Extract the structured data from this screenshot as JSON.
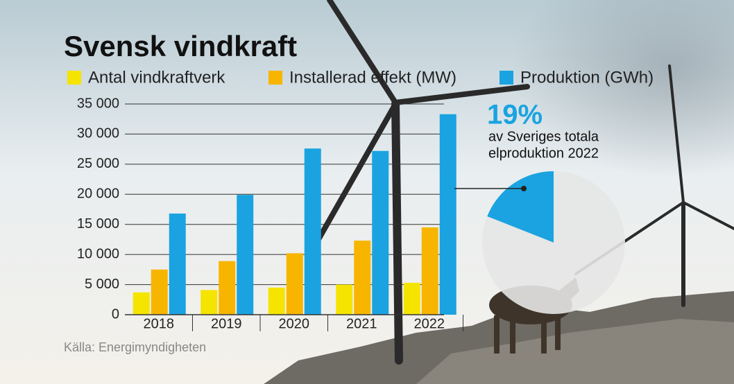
{
  "chart_data": [
    {
      "type": "bar",
      "title": "Svensk vindkraft",
      "categories": [
        "2018",
        "2019",
        "2020",
        "2021",
        "2022"
      ],
      "series": [
        {
          "name": "Antal vindkraftverk",
          "color": "#f5e400",
          "values": [
            3700,
            4100,
            4500,
            5000,
            5300
          ]
        },
        {
          "name": "Installerad effekt (MW)",
          "color": "#f7b500",
          "values": [
            7500,
            8900,
            10200,
            12300,
            14500
          ]
        },
        {
          "name": "Produktion (GWh)",
          "color": "#1aa3e0",
          "values": [
            16800,
            19900,
            27600,
            27200,
            33300
          ]
        }
      ],
      "ylim": [
        0,
        35000
      ],
      "yticks": [
        0,
        {
          "value": 5000,
          "label": "5 000"
        },
        {
          "value": 10000,
          "label": "10 000"
        },
        {
          "value": 15000,
          "label": "15 000"
        },
        {
          "value": 20000,
          "label": "20 000"
        },
        {
          "value": 25000,
          "label": "25 000"
        },
        {
          "value": 30000,
          "label": "30 000"
        },
        {
          "value": 35000,
          "label": "35 000"
        }
      ],
      "grid": true,
      "source": "Källa: Energimyndigheten"
    },
    {
      "type": "pie",
      "values": [
        19,
        81
      ],
      "value_labels": [
        "19%",
        null
      ],
      "colors": [
        "#1aa3e0",
        "#e6e6e6"
      ],
      "annotation": [
        "av Sveriges totala",
        "elproduktion 2022"
      ]
    }
  ]
}
